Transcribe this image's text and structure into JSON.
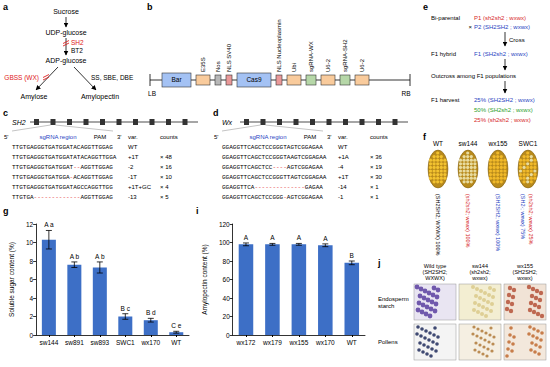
{
  "panel_a": {
    "label": "a",
    "steps": [
      "Sucrose",
      "UDP-glucose",
      "ADP-glucose"
    ],
    "step_enzymes": [
      {
        "text": "SH2",
        "color": "#e02020"
      },
      {
        "text": "BT2",
        "color": "#000000"
      }
    ],
    "branches": [
      {
        "enzyme": "GBSS (WX)",
        "color": "#e02020",
        "product": "Amylose"
      },
      {
        "enzyme": "SS, SBE, DBE",
        "color": "#000000",
        "product": "Amylopectin"
      }
    ]
  },
  "panel_b": {
    "label": "b",
    "left_border": "LB",
    "right_border": "RB",
    "elements": [
      {
        "text": "Bar",
        "kind": "gene"
      },
      {
        "text": "E35S",
        "kind": "promoter"
      },
      {
        "text": "Nos",
        "kind": "terminator"
      },
      {
        "text": "NLS SV40",
        "kind": "nls"
      },
      {
        "text": "Cas9",
        "kind": "gene"
      },
      {
        "text": "NLS Nucleoplasmin",
        "kind": "nls"
      },
      {
        "text": "Ubi",
        "kind": "promoter"
      },
      {
        "text": "sgRNA-WX",
        "kind": "sgrna"
      },
      {
        "text": "U6-2",
        "kind": "promoter"
      },
      {
        "text": "sgRNA-SH2",
        "kind": "sgrna"
      },
      {
        "text": "U6-2",
        "kind": "promoter"
      }
    ]
  },
  "panel_c": {
    "label": "c",
    "gene": "SH2",
    "header": {
      "five": "5'",
      "sgrna": "sgRNA region",
      "pam": "PAM",
      "three": "3'",
      "var": "var.",
      "counts": "counts"
    },
    "rows": [
      {
        "seq": "TTGTGAGGGTGATGGATACAGGTTGGAG",
        "var": "WT",
        "count": null
      },
      {
        "seq": "TTGTGAGGGTGATGGATATACAGGTTGGA",
        "var": "+1T",
        "count": "× 48"
      },
      {
        "seq": "TTGTGAGGGTGATGGAT--AGGTTGGAG",
        "var": "-2",
        "count": "× 16"
      },
      {
        "seq": "TTGTGAGGGTGATGGA-ACAGGTTGGAG",
        "var": "-1T",
        "count": "× 10"
      },
      {
        "seq": "TTGTGAGGGTGATGGATAGCCAGGTTGG",
        "var": "+1T+GC",
        "count": "× 4"
      },
      {
        "seq": "TTGTGA-------------AGGTTGGAG",
        "var": "-13",
        "count": "× 5"
      }
    ]
  },
  "panel_d": {
    "label": "d",
    "gene": "Wx",
    "header": {
      "five": "5'",
      "sgrna": "sgRNA region",
      "pam": "PAM",
      "three": "3'",
      "var": "var.",
      "counts": "counts"
    },
    "rows": [
      {
        "seq": "GGAGGTTCAGCTCCGGGTAGTCGGAGAA",
        "var": "WT",
        "count": null
      },
      {
        "seq": "GGAGGTTCAGCTCCGGGTAAGTCGGAGAA",
        "var": "+1A",
        "count": "× 36"
      },
      {
        "seq": "GGAGGTTCAGCTCC----AGTCGGAGAA",
        "var": "-4",
        "count": "× 19"
      },
      {
        "seq": "GGAGGTTCAGCTCCGGGTTAGTCGGAGAA",
        "var": "+1T",
        "count": "× 30"
      },
      {
        "seq": "GGAGGTTCA--------------GAGAA",
        "var": "-14",
        "count": "× 1"
      },
      {
        "seq": "GGAGGTTCAGCTCCGGG-AGTCGGAGAA",
        "var": "-1",
        "count": "× 1"
      }
    ]
  },
  "panel_e": {
    "label": "e",
    "cross_label": "Bi-parental",
    "parents": [
      {
        "text": "P1 (sh2sh2 ; wxwx)",
        "color": "#d62728"
      },
      {
        "text": "P2 (SH2SH2 ; wxwx)",
        "color": "#1f3fbf"
      }
    ],
    "cross_symbol": "×",
    "cross_step": "Cross",
    "f1_label": "F1 hybrid",
    "f1": {
      "text": "F1 (SH2sh2 ; wxwx)",
      "color": "#1f3fbf"
    },
    "outcross_step": "Outcross among F1 populations",
    "harvest_label": "F1 harvest",
    "harvest": [
      {
        "text": "25% (SH2SH2 ; wxwx)",
        "color": "#1f3fbf"
      },
      {
        "text": "50% (SH2sh2 ; wxwx)",
        "color": "#2ca02c"
      },
      {
        "text": "25% (sh2sh2 ; wxwx)",
        "color": "#d62728"
      }
    ]
  },
  "panel_f": {
    "label": "f",
    "ears": [
      {
        "name": "WT",
        "genotypes": [
          {
            "text": "(SH2SH2; WXWX) 100%",
            "color": "#000000"
          }
        ]
      },
      {
        "name": "sw144",
        "genotypes": [
          {
            "text": "(sh2sh2; wxwx) 100%",
            "color": "#d62728"
          }
        ]
      },
      {
        "name": "wx155",
        "genotypes": [
          {
            "text": "(SH2SH2; wxwx) 100%",
            "color": "#1f3fbf"
          }
        ]
      },
      {
        "name": "SWC1",
        "genotypes": [
          {
            "text": "(SH2-; wxwx) 75%",
            "color": "#1f3fbf"
          },
          {
            "text": "(sh2sh2; wxwx) 25%",
            "color": "#d62728"
          }
        ]
      }
    ]
  },
  "panel_j": {
    "label": "j",
    "columns": [
      "Wild type (SH2SH2; WXWX)",
      "sw144 (sh2sh2; wxwx)",
      "wx155 (SH2SH2; wxwx)"
    ],
    "rows": [
      "Endosperm starch",
      "Pollens"
    ]
  },
  "chart_data": [
    {
      "panel_label": "g",
      "type": "bar",
      "ylabel": "Soluble sugar content (%)",
      "categories": [
        "sw144",
        "sw891",
        "sw893",
        "SWC1",
        "wx170",
        "WT"
      ],
      "values": [
        10.3,
        7.6,
        7.3,
        2.0,
        1.6,
        0.3
      ],
      "errors": [
        1.0,
        0.3,
        0.6,
        0.3,
        0.2,
        0.1
      ],
      "annotations": [
        "A a",
        "A b",
        "A b",
        "B c",
        "B d",
        "C e"
      ],
      "color": "#3d6fc6",
      "ylim": [
        0,
        12
      ],
      "yticks": [
        0,
        2,
        4,
        6,
        8,
        10,
        12
      ],
      "grid": false
    },
    {
      "panel_label": "i",
      "type": "bar",
      "ylabel": "Amylopectin content (%)",
      "categories": [
        "wx172",
        "wx179",
        "wx155",
        "wx170",
        "WT"
      ],
      "values": [
        98,
        98,
        98,
        97,
        78
      ],
      "errors": [
        1.5,
        1,
        1,
        1.5,
        2
      ],
      "annotations": [
        "A",
        "A",
        "A",
        "A",
        "B"
      ],
      "color": "#3d6fc6",
      "ylim": [
        0,
        120
      ],
      "yticks": [
        0,
        20,
        40,
        60,
        80,
        100,
        120
      ],
      "grid": false
    }
  ]
}
